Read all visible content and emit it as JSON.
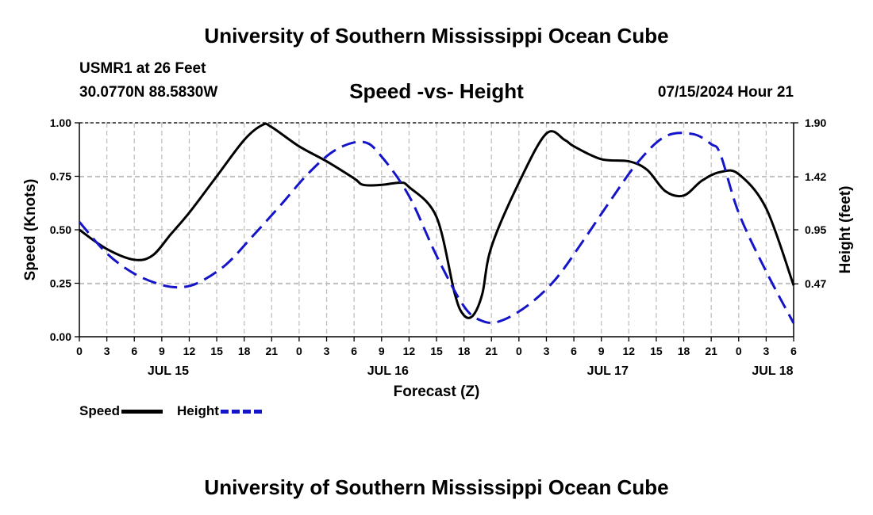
{
  "header": {
    "title": "University of Southern Mississippi Ocean Cube",
    "station": "USMR1 at 26 Feet",
    "coords": "30.0770N  88.5830W",
    "subtitle": "Speed -vs- Height",
    "run_time": "07/15/2024 Hour 21"
  },
  "footer": {
    "title": "University of Southern Mississippi Ocean Cube"
  },
  "legend": {
    "speed_label": "Speed",
    "height_label": "Height"
  },
  "colors": {
    "speed": "#000000",
    "height": "#1414c8",
    "grid": "#c0c0c0"
  },
  "chart_data": {
    "type": "line",
    "title": "Speed -vs- Height",
    "xlabel": "Forecast (Z)",
    "ylabel": "Speed (Knots)",
    "y2label": "Height (feet)",
    "x_unit": "forecast hour (0 = 00Z Jul 15)",
    "xlim": [
      0,
      78
    ],
    "ylim": [
      0,
      1
    ],
    "y2lim": [
      0,
      1.9
    ],
    "x_ticks": [
      0,
      3,
      6,
      9,
      12,
      15,
      18,
      21,
      24,
      27,
      30,
      33,
      36,
      39,
      42,
      45,
      48,
      51,
      54,
      57,
      60,
      63,
      66,
      69,
      72,
      75,
      78
    ],
    "x_tick_labels": [
      "0",
      "3",
      "6",
      "9",
      "12",
      "15",
      "18",
      "21",
      "0",
      "3",
      "6",
      "9",
      "12",
      "15",
      "18",
      "21",
      "0",
      "3",
      "6",
      "9",
      "12",
      "15",
      "18",
      "21",
      "0",
      "3",
      "6"
    ],
    "date_labels": [
      {
        "x": 9.7,
        "label": "JUL 15"
      },
      {
        "x": 33.7,
        "label": "JUL 16"
      },
      {
        "x": 57.7,
        "label": "JUL 17"
      },
      {
        "x": 75.7,
        "label": "JUL 18"
      }
    ],
    "y_ticks": [
      0.0,
      0.25,
      0.5,
      0.75,
      1.0
    ],
    "y_tick_labels": [
      "0.00",
      "0.25",
      "0.50",
      "0.75",
      "1.00"
    ],
    "y2_ticks": [
      0.47,
      0.95,
      1.42,
      1.9
    ],
    "y2_tick_labels": [
      "0.47",
      "0.95",
      "1.42",
      "1.90"
    ],
    "grid": true,
    "legend_position": "bottom-left",
    "series": [
      {
        "name": "Speed",
        "axis": "left",
        "style": "solid",
        "x": [
          0,
          3,
          6,
          8,
          10,
          12,
          15,
          18,
          20,
          21,
          24,
          27,
          30,
          31,
          33,
          35,
          36,
          39,
          41,
          42,
          43,
          44,
          45,
          48,
          51,
          53,
          54,
          57,
          60,
          62,
          64,
          66,
          68,
          70,
          72,
          75,
          78
        ],
        "values": [
          0.5,
          0.41,
          0.36,
          0.38,
          0.48,
          0.58,
          0.75,
          0.92,
          0.99,
          0.98,
          0.89,
          0.82,
          0.74,
          0.71,
          0.71,
          0.72,
          0.7,
          0.56,
          0.2,
          0.1,
          0.1,
          0.2,
          0.42,
          0.72,
          0.95,
          0.92,
          0.89,
          0.83,
          0.82,
          0.78,
          0.68,
          0.66,
          0.73,
          0.77,
          0.76,
          0.6,
          0.24
        ]
      },
      {
        "name": "Height",
        "axis": "right",
        "style": "dashed",
        "x": [
          0,
          3,
          6,
          9,
          11,
          13,
          16,
          19,
          22,
          25,
          28,
          31,
          33,
          36,
          39,
          42,
          44,
          46,
          49,
          52,
          55,
          58,
          61,
          64,
          67,
          69,
          70,
          72,
          75,
          78
        ],
        "values": [
          1.02,
          0.74,
          0.56,
          0.46,
          0.44,
          0.48,
          0.64,
          0.9,
          1.17,
          1.45,
          1.66,
          1.73,
          1.6,
          1.25,
          0.72,
          0.27,
          0.14,
          0.14,
          0.28,
          0.51,
          0.85,
          1.21,
          1.55,
          1.78,
          1.8,
          1.71,
          1.62,
          1.1,
          0.58,
          0.12
        ]
      }
    ]
  }
}
